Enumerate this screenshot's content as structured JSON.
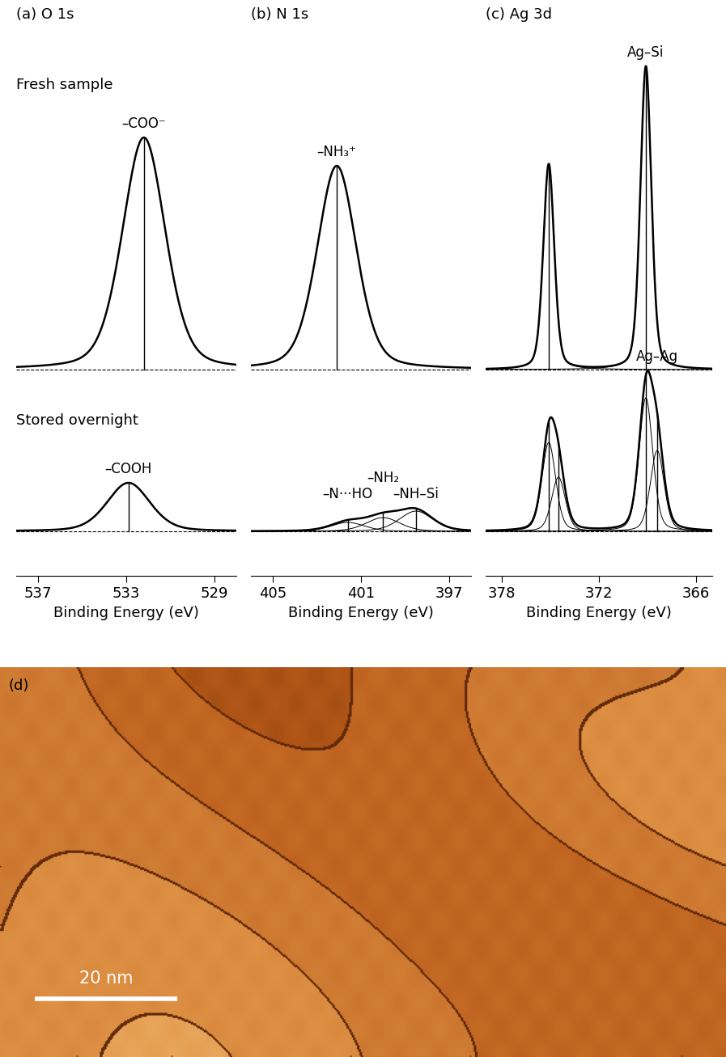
{
  "rows": [
    "Fresh sample",
    "Stored overnight"
  ],
  "chart_data": [
    {
      "type": "line",
      "title": "(a) O 1s",
      "xlabel": "Binding Energy (eV)",
      "xlim": [
        538,
        528
      ],
      "xticks": [
        537,
        533,
        529
      ],
      "ylim": [
        -55,
        400
      ],
      "color": "#000000",
      "tick_labels": "x",
      "spectra": [
        {
          "peaks": [
            {
              "label": "–COO⁻",
              "center": 532.2,
              "height": 287,
              "fwhm": 2.3
            }
          ]
        },
        {
          "peaks": [
            {
              "label": "–COOH",
              "center": 532.9,
              "height": 60,
              "fwhm": 2.3
            }
          ]
        }
      ]
    },
    {
      "type": "line",
      "title": "(b) N 1s",
      "xlabel": "Binding Energy (eV)",
      "xlim": [
        406,
        396
      ],
      "xticks": [
        405,
        401,
        397
      ],
      "ylim": [
        -55,
        400
      ],
      "color": "#000000",
      "tick_labels": "x",
      "spectra": [
        {
          "peaks": [
            {
              "label": "–NH₃⁺",
              "center": 402.1,
              "height": 252,
              "fwhm": 2.1
            }
          ]
        },
        {
          "peaks": [
            {
              "label": "–N···HO",
              "center": 401.6,
              "height": 11,
              "fwhm": 1.8
            },
            {
              "label": "–NH₂",
              "center": 400.0,
              "height": 17,
              "fwhm": 1.8
            },
            {
              "label": "–NH–Si",
              "center": 398.5,
              "height": 25,
              "fwhm": 1.8
            }
          ]
        }
      ]
    },
    {
      "type": "line",
      "title": "(c) Ag 3d",
      "xlabel": "Binding Energy (eV)",
      "xlim": [
        379,
        365
      ],
      "xticks": [
        378,
        372,
        366
      ],
      "ylim": [
        -55,
        400
      ],
      "color": "#000000",
      "tick_labels": "x",
      "spectra": [
        {
          "peaks": [
            {
              "center": 375.1,
              "height": 254,
              "fwhm": 0.8
            },
            {
              "label": "Ag–Si",
              "center": 369.1,
              "height": 375,
              "fwhm": 0.8
            }
          ]
        },
        {
          "peaks": [
            {
              "center": 375.1,
              "height": 110,
              "fwhm": 1.0
            },
            {
              "center": 374.5,
              "height": 67,
              "fwhm": 1.0
            },
            {
              "center": 369.1,
              "height": 165,
              "fwhm": 1.0
            },
            {
              "label": "Ag–Ag",
              "center": 368.4,
              "height": 100,
              "fwhm": 1.0
            }
          ]
        }
      ]
    }
  ],
  "image": {
    "label": "(d)",
    "width_nm": 102,
    "height_nm": 55,
    "scale_bar": {
      "length": 20,
      "label": "20 nm"
    }
  }
}
